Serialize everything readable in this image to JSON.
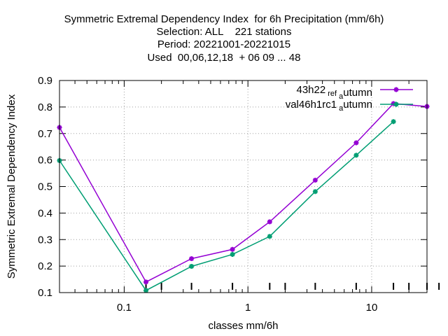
{
  "chart_data": {
    "type": "line",
    "title_lines": [
      "Symmetric Extremal Dependency Index  for 6h Precipitation (mm/6h)",
      "Selection: ALL    221 stations",
      "Period: 20221001-20221015",
      "Used  00,06,12,18  + 06 09 ... 48"
    ],
    "xlabel": "classes mm/6h",
    "ylabel": "Symmetric Extremal Dependency Index",
    "x_scale": "log",
    "xlim": [
      0.03,
      28
    ],
    "ylim": [
      0.1,
      0.9
    ],
    "x_ticks": [
      0.1,
      1,
      10
    ],
    "x_tick_labels": [
      "0.1",
      "1",
      "10"
    ],
    "y_ticks": [
      0.1,
      0.2,
      0.3,
      0.4,
      0.5,
      0.6,
      0.7,
      0.8,
      0.9
    ],
    "y_tick_labels": [
      "0.1",
      "0.2",
      "0.3",
      "0.4",
      "0.5",
      "0.6",
      "0.7",
      "0.8",
      "0.9"
    ],
    "grid": true,
    "legend_position": "top-right",
    "series": [
      {
        "name": "43h22_ref_autumn",
        "legend_main": "43h22",
        "legend_sub1": "ref",
        "legend_sub2": "a",
        "legend_tail": "utumn",
        "color": "#9400d3",
        "x": [
          0.03,
          0.15,
          0.35,
          0.75,
          1.5,
          3.5,
          7.5,
          15,
          28
        ],
        "y": [
          0.723,
          0.14,
          0.228,
          0.263,
          0.367,
          0.524,
          0.665,
          0.813,
          0.802
        ]
      },
      {
        "name": "val46h1rc1_autumn",
        "legend_main": "val46h1rc1",
        "legend_sub1": "",
        "legend_sub2": "a",
        "legend_tail": "utumn",
        "color": "#009e73",
        "x": [
          0.03,
          0.15,
          0.35,
          0.75,
          1.5,
          3.5,
          7.5,
          15
        ],
        "y": [
          0.598,
          0.108,
          0.199,
          0.244,
          0.312,
          0.481,
          0.618,
          0.745
        ]
      }
    ],
    "bottom_rug_x": [
      0.15,
      0.2,
      0.35,
      0.75,
      1.5,
      2.0,
      3.5,
      7.5,
      15,
      20,
      28,
      35
    ]
  }
}
